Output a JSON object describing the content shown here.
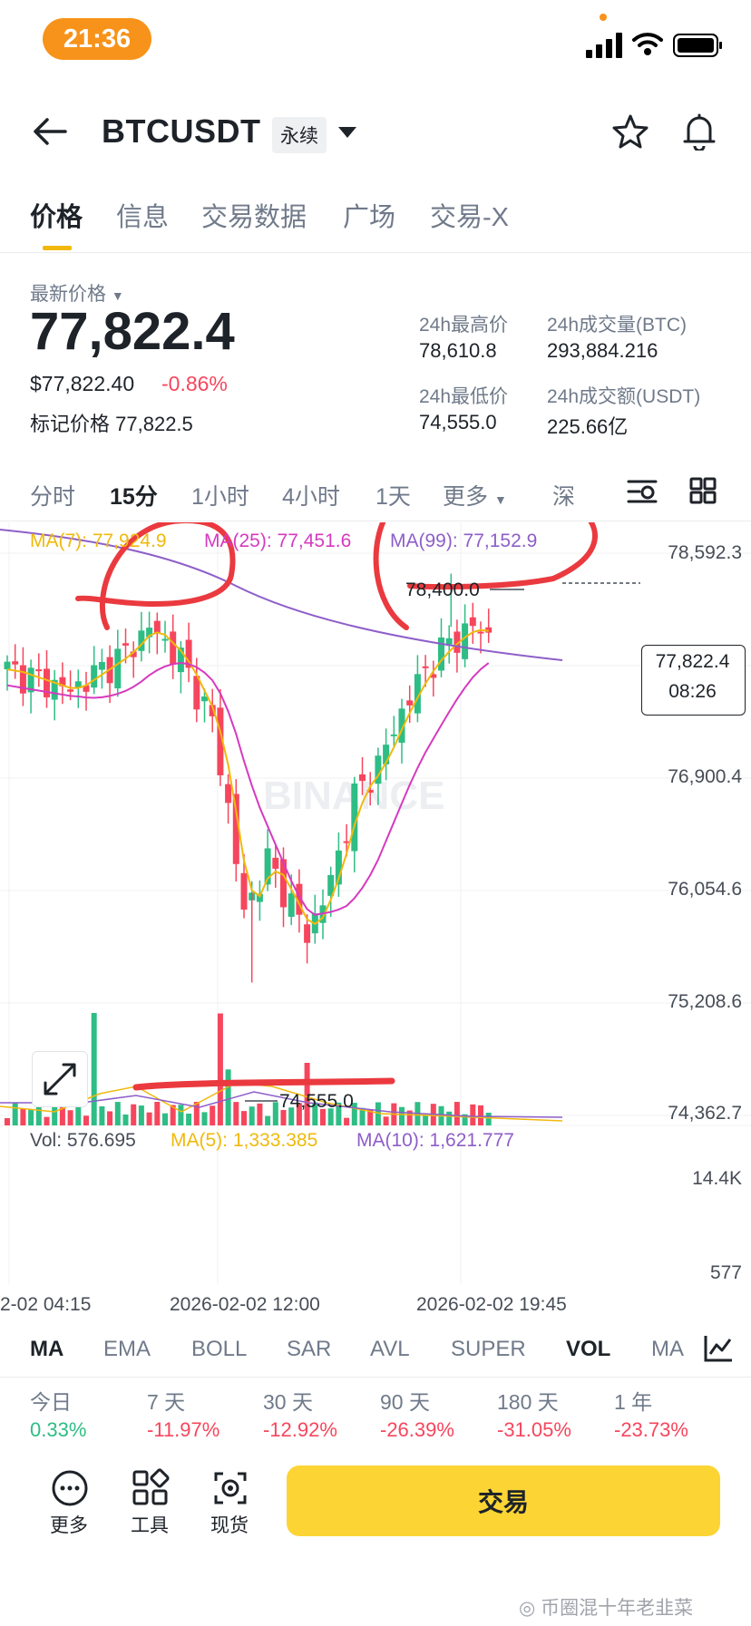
{
  "status_bar": {
    "time": "21:36"
  },
  "header": {
    "symbol": "BTCUSDT",
    "contract_type": "永续"
  },
  "tabs": [
    "价格",
    "信息",
    "交易数据",
    "广场",
    "交易-X"
  ],
  "price": {
    "last_label": "最新价格",
    "last": "77,822.4",
    "usd": "$77,822.40",
    "change": "-0.86%",
    "mark_label": "标记价格",
    "mark": "77,822.5"
  },
  "stats": {
    "high_label": "24h最高价",
    "high": "78,610.8",
    "vol_btc_label": "24h成交量(BTC)",
    "vol_btc": "293,884.216",
    "low_label": "24h最低价",
    "low": "74,555.0",
    "vol_usdt_label": "24h成交额(USDT)",
    "vol_usdt": "225.66亿"
  },
  "intervals": [
    "分时",
    "15分",
    "1小时",
    "4小时",
    "1天",
    "更多",
    "深"
  ],
  "chart_legend": {
    "ma7": "MA(7): 77,924.9",
    "ma25": "MA(25): 77,451.6",
    "ma99": "MA(99): 77,152.9"
  },
  "chart_labels": {
    "high_marker": "78,400.0",
    "low_marker": "74,555.0",
    "current_price": "77,822.4",
    "countdown": "08:26",
    "watermark": "BINANCE"
  },
  "y_axis": [
    "78,592.3",
    "76,900.4",
    "76,054.6",
    "75,208.6",
    "74,362.7"
  ],
  "volume_legend": {
    "vol": "Vol: 576.695",
    "ma5": "MA(5): 1,333.385",
    "ma10": "MA(10): 1,621.777"
  },
  "volume_axis": [
    "14.4K",
    "577"
  ],
  "time_axis": [
    "2-02 04:15",
    "2026-02-02 12:00",
    "2026-02-02 19:45"
  ],
  "indicators": [
    "MA",
    "EMA",
    "BOLL",
    "SAR",
    "AVL",
    "SUPER",
    "VOL",
    "MA"
  ],
  "performance": [
    {
      "label": "今日",
      "value": "0.33%"
    },
    {
      "label": "7 天",
      "value": "-11.97%"
    },
    {
      "label": "30 天",
      "value": "-12.92%"
    },
    {
      "label": "90 天",
      "value": "-26.39%"
    },
    {
      "label": "180 天",
      "value": "-31.05%"
    },
    {
      "label": "1 年",
      "value": "-23.73%"
    }
  ],
  "bottom_bar": {
    "more": "更多",
    "tools": "工具",
    "spot": "现货",
    "trade": "交易"
  },
  "footer_watermark": "币圈混十年老韭菜",
  "colors": {
    "up": "#2ebd85",
    "down": "#f6465d",
    "ma7": "#f0b90b",
    "ma25": "#d63abf",
    "ma99": "#8e5ec9",
    "accent": "#fcd535",
    "annotation": "#ea3a3f"
  },
  "chart_data": {
    "type": "candlestick",
    "interval": "15分",
    "ylim": [
      74362.7,
      78592.3
    ],
    "low_marker": 74555.0,
    "high_marker": 78400.0,
    "last": 77822.4
  }
}
